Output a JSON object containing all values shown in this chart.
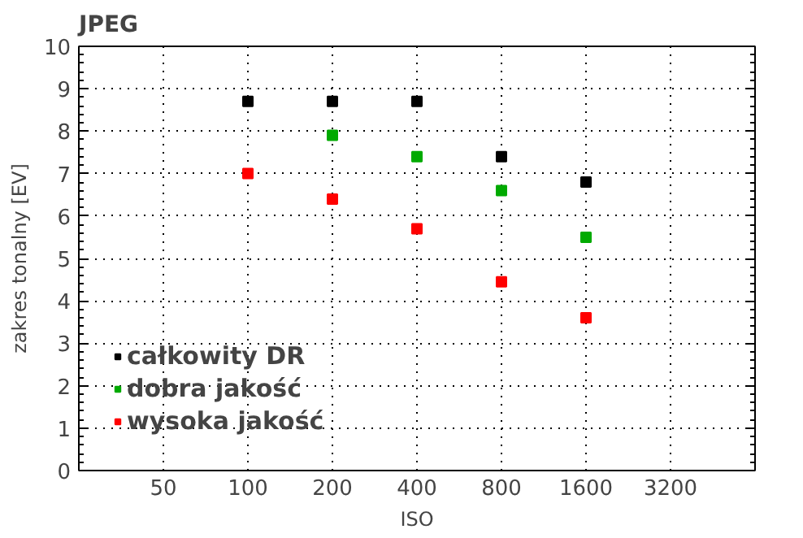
{
  "chart_data": {
    "type": "scatter",
    "title": "JPEG",
    "xlabel": "ISO",
    "ylabel": "zakres tonalny [EV]",
    "x": [
      100,
      200,
      400,
      800,
      1600
    ],
    "series": [
      {
        "name": "całkowity DR",
        "color": "#000000",
        "values": [
          8.7,
          8.7,
          8.7,
          7.4,
          6.8
        ]
      },
      {
        "name": "dobra jakość",
        "color": "#00aa00",
        "x": [
          200,
          400,
          800,
          1600
        ],
        "values": [
          7.9,
          7.4,
          6.6,
          5.5
        ]
      },
      {
        "name": "wysoka jakość",
        "color": "#ff0000",
        "values": [
          7.0,
          6.4,
          5.7,
          4.45,
          3.6
        ]
      }
    ],
    "log": "x",
    "xlim": [
      25,
      6400
    ],
    "xticks": [
      50,
      100,
      200,
      400,
      800,
      1600,
      3200
    ],
    "ylim": [
      0,
      10
    ],
    "yticks": [
      0,
      1,
      2,
      3,
      4,
      5,
      6,
      7,
      8,
      9,
      10
    ],
    "grid": true,
    "legend": "bottom left",
    "marker": "square"
  }
}
